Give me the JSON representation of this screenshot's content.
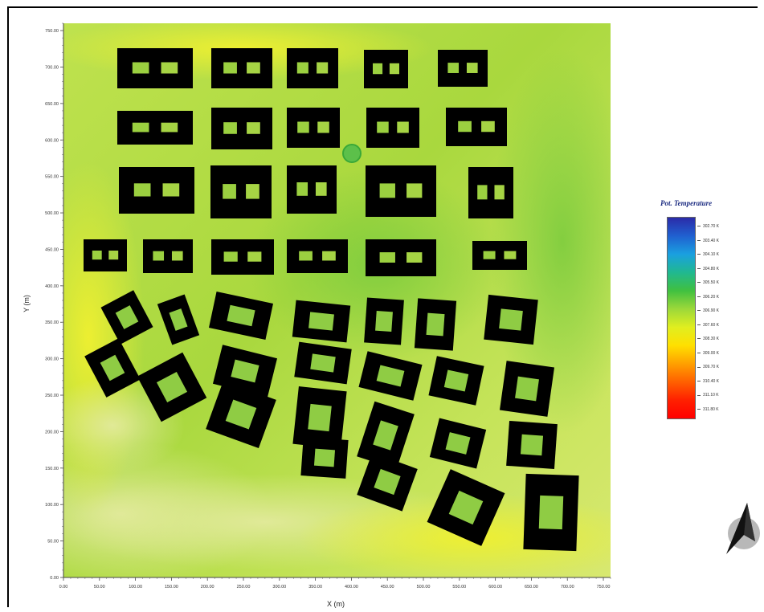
{
  "map": {
    "xlabel": "X (m)",
    "ylabel": "Y (m)",
    "x_ticks": [
      "0.00",
      "50.00",
      "100.00",
      "150.00",
      "200.00",
      "250.00",
      "300.00",
      "350.00",
      "400.00",
      "450.00",
      "500.00",
      "550.00",
      "600.00",
      "650.00",
      "700.00",
      "750.00"
    ],
    "y_ticks": [
      "0.00",
      "50.00",
      "100.00",
      "150.00",
      "200.00",
      "250.00",
      "300.00",
      "350.00",
      "400.00",
      "450.00",
      "500.00",
      "550.00",
      "600.00",
      "650.00",
      "700.00",
      "750.00"
    ],
    "xlim": [
      0,
      760
    ],
    "ylim": [
      0,
      760
    ],
    "building_color": "#000000",
    "field_colors": [
      "#c8e46a",
      "#bfe24e",
      "#a8d83a",
      "#e8ee30",
      "#7fca3c"
    ]
  },
  "legend": {
    "title": "Pot. Temperature",
    "ticks": [
      "302.70 K",
      "303.40 K",
      "304.10 K",
      "304.80 K",
      "305.50 K",
      "306.20 K",
      "306.90 K",
      "307.60 K",
      "308.30 K",
      "309.00 K",
      "309.70 K",
      "310.40 K",
      "311.10 K",
      "311.80 K"
    ],
    "colors": [
      "#2b2ba8",
      "#2060d0",
      "#1aa0e0",
      "#20b890",
      "#40c040",
      "#9cd83a",
      "#e0ee20",
      "#ffe000",
      "#ffa000",
      "#ff6000",
      "#ff2000",
      "#ff0000"
    ]
  },
  "north_arrow": {
    "icon": "north-arrow-icon"
  }
}
